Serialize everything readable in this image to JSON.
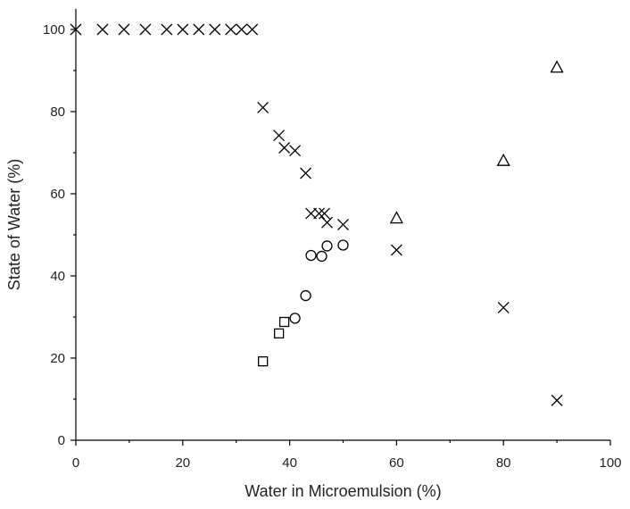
{
  "chart_data": {
    "type": "scatter",
    "title": "",
    "xlabel": "Water in Microemulsion (%)",
    "ylabel": "State of Water (%)",
    "xlim": [
      0,
      100
    ],
    "ylim": [
      0,
      105
    ],
    "x_ticks": [
      0,
      20,
      40,
      60,
      80,
      100
    ],
    "y_ticks": [
      0,
      20,
      40,
      60,
      80,
      100
    ],
    "x_tick_labels": [
      "0",
      "20",
      "40",
      "60",
      "80",
      "100"
    ],
    "y_tick_labels": [
      "0",
      "20",
      "40",
      "60",
      "80",
      "100"
    ],
    "grid": false,
    "legend": "none",
    "series": [
      {
        "marker": "cross",
        "points": [
          [
            0,
            100
          ],
          [
            5,
            100
          ],
          [
            9,
            100
          ],
          [
            13,
            100
          ],
          [
            17,
            100
          ],
          [
            20,
            100
          ],
          [
            23,
            100
          ],
          [
            26,
            100
          ],
          [
            29,
            100
          ],
          [
            31,
            100
          ],
          [
            33,
            100
          ],
          [
            35,
            81
          ],
          [
            38,
            74.2
          ],
          [
            39,
            71.2
          ],
          [
            41,
            70.5
          ],
          [
            43,
            65
          ],
          [
            44,
            55.2
          ],
          [
            45.5,
            55.2
          ],
          [
            46.5,
            55.2
          ],
          [
            47,
            53
          ],
          [
            50,
            52.5
          ],
          [
            60,
            46.3
          ],
          [
            80,
            32.3
          ],
          [
            90,
            9.7
          ]
        ]
      },
      {
        "marker": "circle",
        "points": [
          [
            41,
            29.7
          ],
          [
            43,
            35.2
          ],
          [
            44,
            45
          ],
          [
            46,
            44.8
          ],
          [
            47,
            47.3
          ],
          [
            50,
            47.5
          ]
        ]
      },
      {
        "marker": "square",
        "points": [
          [
            35,
            19.2
          ],
          [
            38,
            26
          ],
          [
            39,
            28.8
          ]
        ]
      },
      {
        "marker": "triangle",
        "points": [
          [
            60,
            54
          ],
          [
            80,
            68
          ],
          [
            90,
            90.7
          ]
        ]
      }
    ]
  }
}
